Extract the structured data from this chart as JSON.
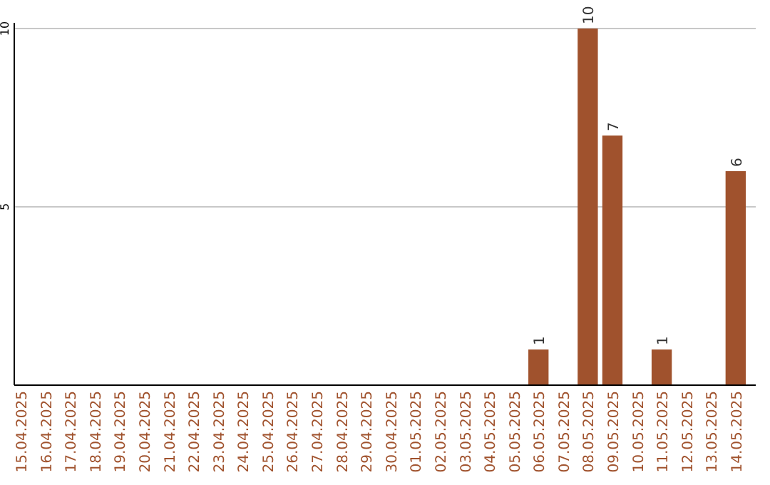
{
  "chart_data": {
    "type": "bar",
    "categories": [
      "15.04.2025",
      "16.04.2025",
      "17.04.2025",
      "18.04.2025",
      "19.04.2025",
      "20.04.2025",
      "21.04.2025",
      "22.04.2025",
      "23.04.2025",
      "24.04.2025",
      "25.04.2025",
      "26.04.2025",
      "27.04.2025",
      "28.04.2025",
      "29.04.2025",
      "30.04.2025",
      "01.05.2025",
      "02.05.2025",
      "03.05.2025",
      "04.05.2025",
      "05.05.2025",
      "06.05.2025",
      "07.05.2025",
      "08.05.2025",
      "09.05.2025",
      "10.05.2025",
      "11.05.2025",
      "12.05.2025",
      "13.05.2025",
      "14.05.2025"
    ],
    "values": [
      0,
      0,
      0,
      0,
      0,
      0,
      0,
      0,
      0,
      0,
      0,
      0,
      0,
      0,
      0,
      0,
      0,
      0,
      0,
      0,
      0,
      1,
      0,
      10,
      7,
      0,
      1,
      0,
      0,
      6
    ],
    "value_labels": [
      null,
      null,
      null,
      null,
      null,
      null,
      null,
      null,
      null,
      null,
      null,
      null,
      null,
      null,
      null,
      null,
      null,
      null,
      null,
      null,
      null,
      "1",
      null,
      "10",
      "7",
      null,
      "1",
      null,
      null,
      "6"
    ],
    "color": "#a0522d",
    "ylim": [
      0,
      10
    ],
    "yticks": [
      5,
      10
    ],
    "grid": "y"
  }
}
